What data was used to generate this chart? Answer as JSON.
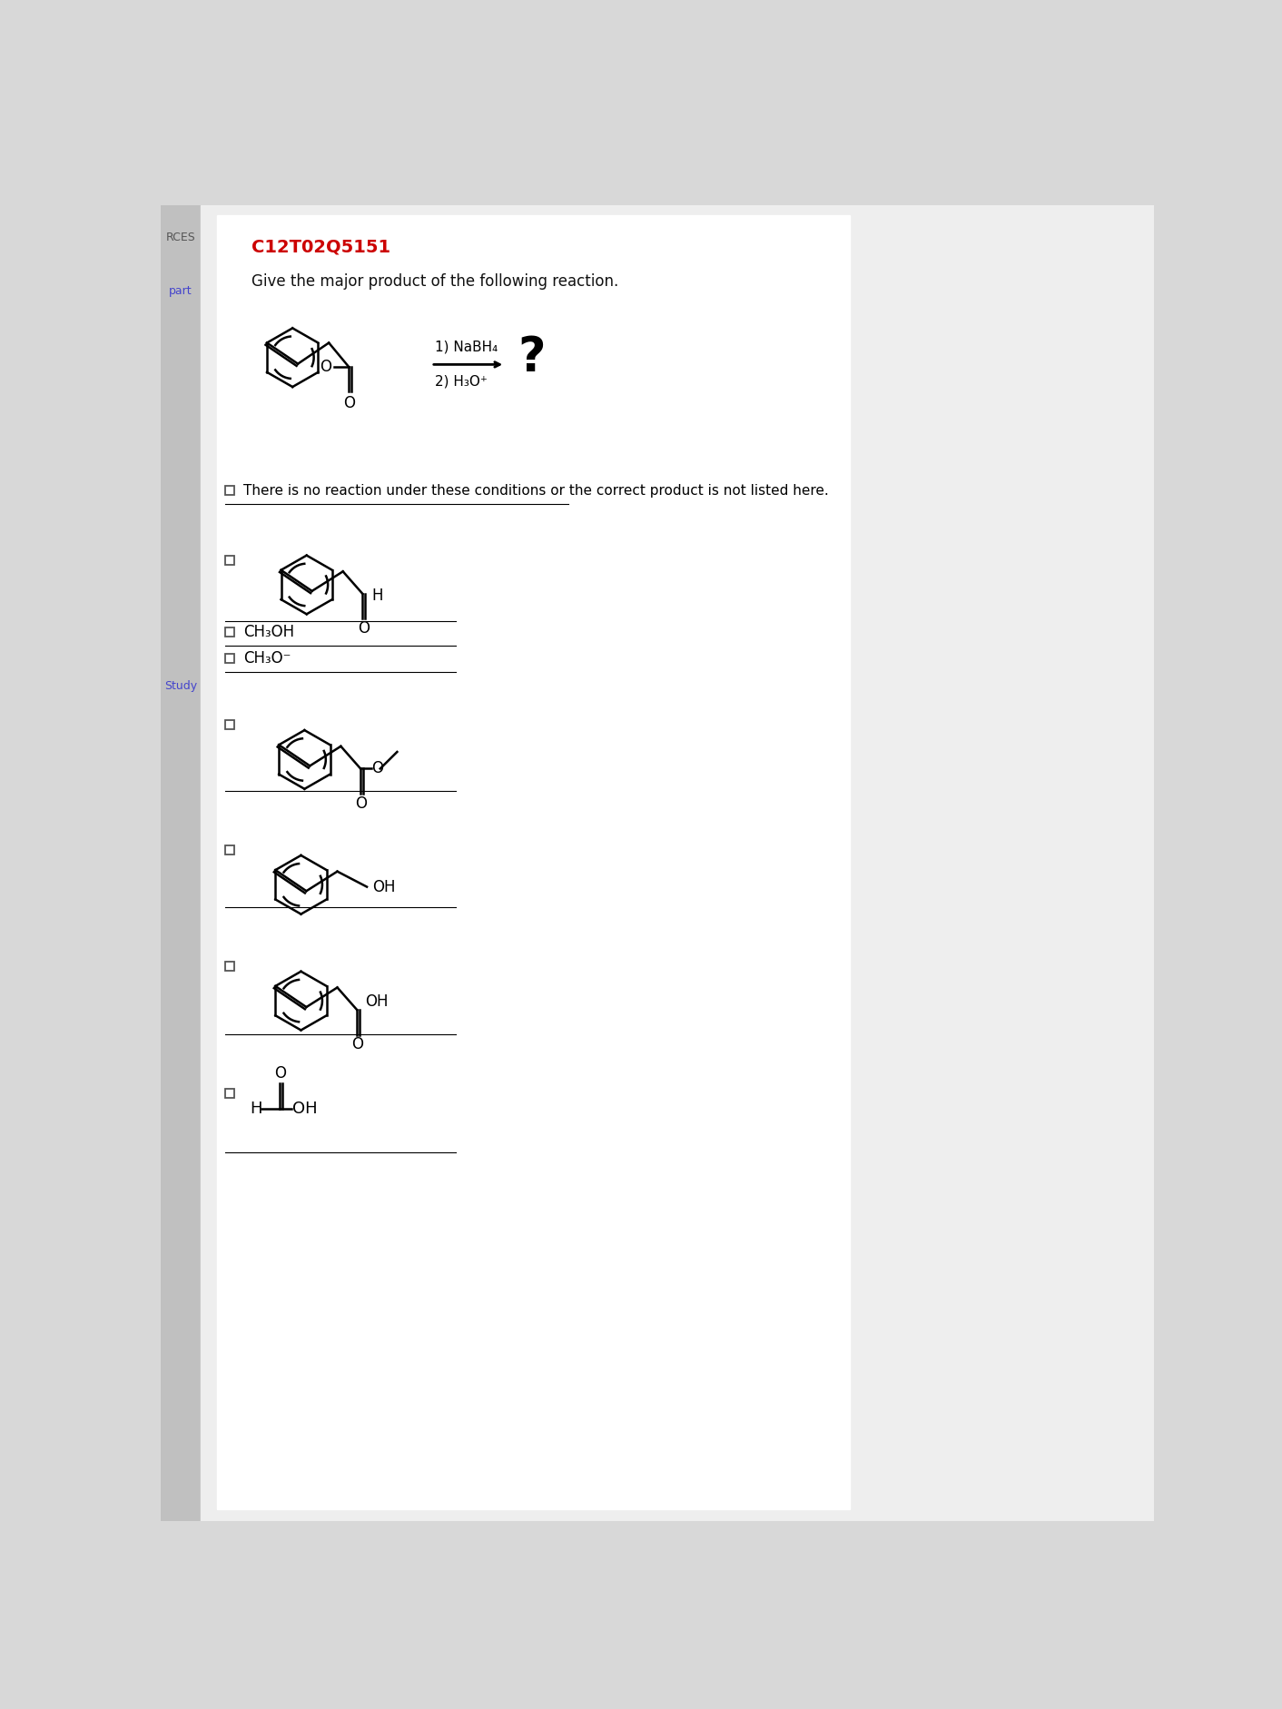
{
  "bg_color": "#d8d8d8",
  "panel_bg": "#f2f2f2",
  "white_bg": "#ffffff",
  "title_id": "C12T02Q5151",
  "title_color": "#cc0000",
  "question_text": "Give the major product of the following reaction.",
  "no_reaction_text": "There is no reaction under these conditions or the correct product is not listed here.",
  "ch3oh": "CH₃OH",
  "ch3o": "CH₃O⁻",
  "reaction_line1": "1) NaBH₄",
  "reaction_line2": "2) H₃O⁺"
}
